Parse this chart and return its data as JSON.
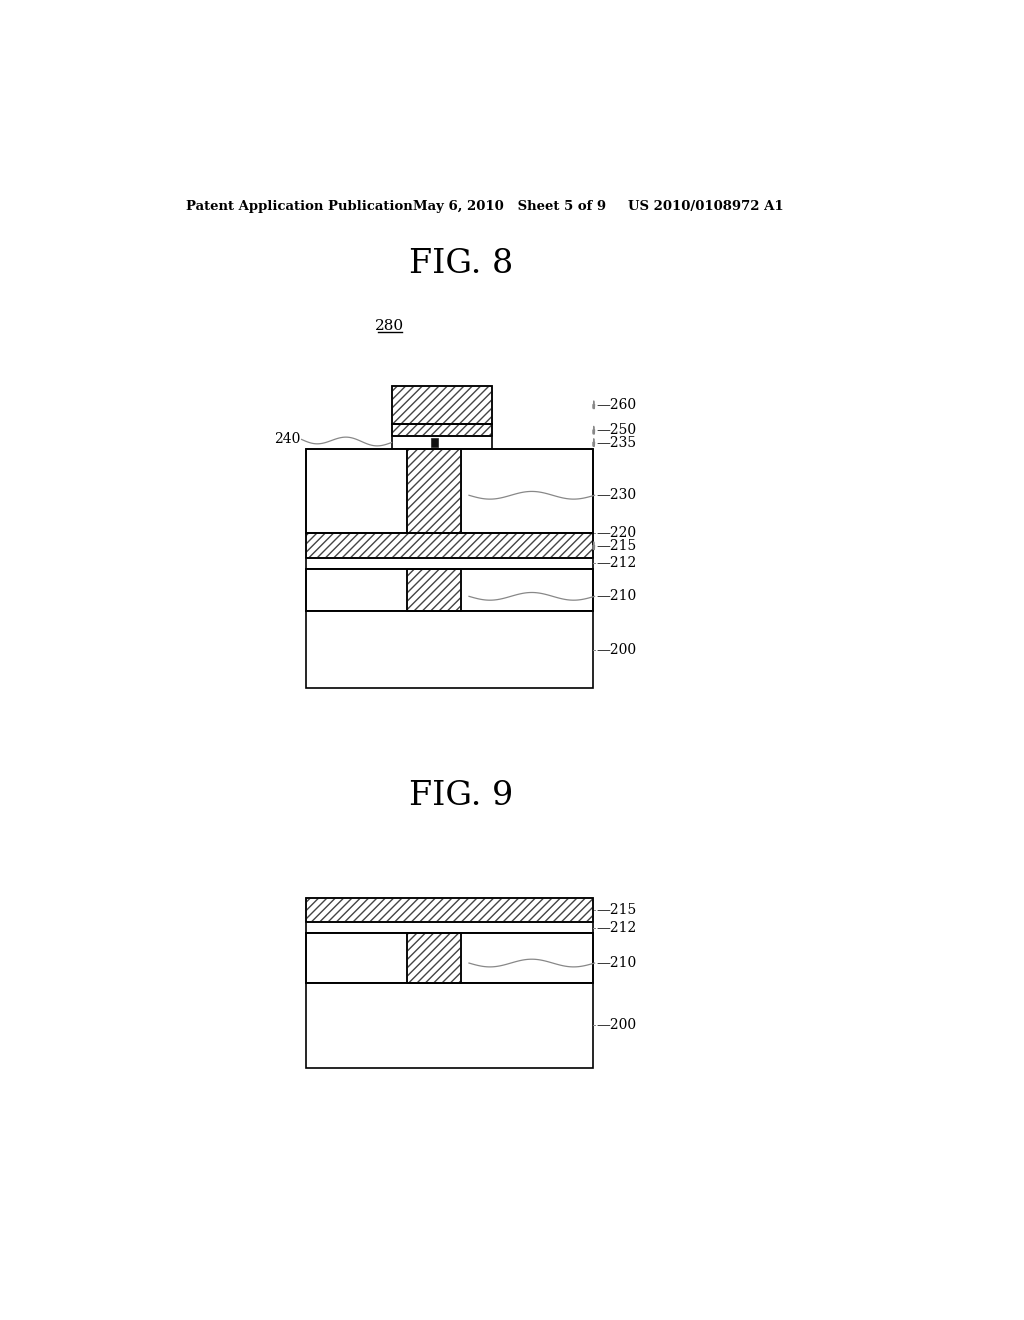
{
  "bg_color": "#ffffff",
  "header_left": "Patent Application Publication",
  "header_mid": "May 6, 2010   Sheet 5 of 9",
  "header_right": "US 2010/0108972 A1",
  "fig8_title": "FIG. 8",
  "fig9_title": "FIG. 9",
  "label_280": "280",
  "line_color": "#555555",
  "black": "#000000",
  "hatch_color": "#444444"
}
